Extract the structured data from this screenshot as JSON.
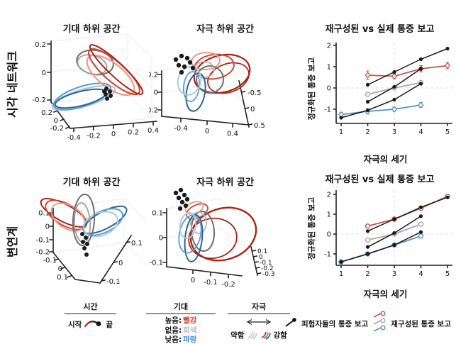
{
  "rows": [
    {
      "label": "시각 네트워크"
    },
    {
      "label": "변연계"
    }
  ],
  "chart_data": [
    {
      "id": "visual-expectation-subspace",
      "type": "trajectory3d",
      "title": "기대 하위 공간",
      "axes": {
        "z_ticks": [
          "0.2",
          "0",
          "-0.2"
        ],
        "left_ticks": [
          "0.2",
          "0",
          "-0.2"
        ],
        "bottom_ticks": [
          "-0.4",
          "-0.2",
          "0",
          "0.2",
          "0.4"
        ]
      }
    },
    {
      "id": "visual-stimulus-subspace",
      "type": "trajectory3d",
      "title": "자극 하위 공간",
      "axes": {
        "z_ticks": [
          "0.2",
          "0",
          "-0.2"
        ],
        "bottom_ticks": [
          "-0.4",
          "0",
          "0.4"
        ],
        "right_ticks": [
          "-0.5",
          "0",
          "0.5"
        ]
      }
    },
    {
      "id": "visual-reconstructed-vs-actual",
      "type": "line",
      "title": "재구성된 vs 실제 통증 보고",
      "xlabel": "자극의 세기",
      "ylabel": "정규화된 통증 보고",
      "xticks": [
        1,
        2,
        3,
        4,
        5
      ],
      "yticks": [
        2,
        1,
        0,
        -1
      ],
      "xlim": [
        0.8,
        5.4
      ],
      "ylim": [
        -1.75,
        2.3
      ],
      "reference_lines": {
        "x": 3,
        "y": 0
      },
      "series": [
        {
          "key": "recon-none",
          "label": "재구성된 통증 보고 (회색)",
          "color": "#a9a9a9",
          "marker": "open-circle",
          "x": [
            2,
            3,
            4
          ],
          "y": [
            -0.3,
            0.0,
            0.25
          ]
        },
        {
          "key": "recon-low",
          "label": "재구성된 통증 보고 (파랑)",
          "color": "#4f93c8",
          "marker": "open-diamond",
          "x": [
            1,
            2,
            3,
            4
          ],
          "y": [
            -1.25,
            -1.1,
            -1.0,
            -0.8
          ],
          "err": [
            0.1,
            0.12,
            0.1,
            0.12
          ]
        },
        {
          "key": "recon-high",
          "label": "재구성된 통증 보고 (빨강)",
          "color": "#c4554a",
          "marker": "open-diamond",
          "x": [
            2,
            3,
            4,
            5
          ],
          "y": [
            0.6,
            0.55,
            0.9,
            1.05
          ],
          "err": [
            0.2,
            0.12,
            0.15,
            0.15
          ]
        },
        {
          "key": "actual-a",
          "label": "피험자들의 통증 보고",
          "color": "#1a1a1a",
          "marker": "dot",
          "x": [
            2,
            3,
            4,
            5
          ],
          "y": [
            0.15,
            0.75,
            1.35,
            1.85
          ]
        },
        {
          "key": "actual-b",
          "label": "피험자들의 통증 보고",
          "color": "#1a1a1a",
          "marker": "dot",
          "x": [
            2,
            3,
            4
          ],
          "y": [
            -0.65,
            0.05,
            0.9
          ]
        },
        {
          "key": "actual-c",
          "label": "피험자들의 통증 보고",
          "color": "#1a1a1a",
          "marker": "dot",
          "x": [
            1,
            2,
            3,
            4
          ],
          "y": [
            -1.4,
            -1.05,
            -0.55,
            0.2
          ]
        }
      ]
    },
    {
      "id": "limbic-expectation-subspace",
      "type": "trajectory3d",
      "title": "기대 하위 공간",
      "axes": {
        "z_ticks": [
          "0.1",
          "0",
          "-0.1",
          "-0.2"
        ],
        "left_ticks": [
          "-0.1",
          "0",
          "0.1"
        ],
        "right_ticks": [
          "0.1",
          "0",
          "-0.1"
        ]
      }
    },
    {
      "id": "limbic-stimulus-subspace",
      "type": "trajectory3d",
      "title": "자극 하위 공간",
      "axes": {
        "z_ticks": [
          "0.1",
          "0",
          "-0.1"
        ],
        "bottom_ticks": [
          "0",
          "-0.1",
          "-0.2"
        ],
        "right_ticks": [
          "0.1",
          "0",
          "-0.1",
          "-0.2",
          "-0.3"
        ]
      }
    },
    {
      "id": "limbic-reconstructed-vs-actual",
      "type": "line",
      "title": "재구성된 vs 실제 통증 보고",
      "xlabel": "자극의 세기",
      "ylabel": "정규화된 통증 보고",
      "xticks": [
        1,
        2,
        3,
        4,
        5
      ],
      "yticks": [
        2,
        1,
        0,
        -1
      ],
      "xlim": [
        0.8,
        5.4
      ],
      "ylim": [
        -1.75,
        2.3
      ],
      "reference_lines": {
        "x": 3,
        "y": 0
      },
      "series": [
        {
          "key": "recon-none",
          "label": "재구성된 통증 보고 (회색)",
          "color": "#a9a9a9",
          "marker": "open-circle",
          "x": [
            2,
            3,
            4
          ],
          "y": [
            -0.3,
            0.0,
            0.5
          ]
        },
        {
          "key": "recon-low",
          "label": "재구성된 통증 보고 (파랑)",
          "color": "#4f93c8",
          "marker": "open-circle",
          "x": [
            1,
            2,
            3,
            4
          ],
          "y": [
            -1.4,
            -1.0,
            -0.55,
            -0.1
          ]
        },
        {
          "key": "recon-high",
          "label": "재구성된 통증 보고 (빨강)",
          "color": "#c4554a",
          "marker": "open-circle",
          "x": [
            2,
            3,
            4,
            5
          ],
          "y": [
            0.4,
            0.75,
            1.3,
            1.9
          ]
        },
        {
          "key": "actual-a",
          "label": "피험자들의 통증 보고",
          "color": "#1a1a1a",
          "marker": "dot",
          "x": [
            2,
            3,
            4,
            5
          ],
          "y": [
            0.15,
            0.75,
            1.35,
            1.85
          ]
        },
        {
          "key": "actual-b",
          "label": "피험자들의 통증 보고",
          "color": "#1a1a1a",
          "marker": "dot",
          "x": [
            2,
            3,
            4
          ],
          "y": [
            -0.65,
            0.05,
            0.9
          ]
        },
        {
          "key": "actual-c",
          "label": "피험자들의 통증 보고",
          "color": "#1a1a1a",
          "marker": "dot",
          "x": [
            1,
            2,
            3,
            4
          ],
          "y": [
            -1.4,
            -1.0,
            -0.55,
            0.1
          ]
        }
      ]
    }
  ],
  "legend": {
    "time": {
      "title": "시간",
      "start_label": "시작",
      "end_label": "끝"
    },
    "expectation": {
      "title": "기대",
      "items": [
        {
          "label": "높음:",
          "value": "빨강",
          "color": "#d63a26"
        },
        {
          "label": "없음:",
          "value": "회색",
          "color": "#b9b9b9"
        },
        {
          "label": "낮음:",
          "value": "파랑",
          "color": "#3d8bd4"
        }
      ]
    },
    "stimulus": {
      "title": "자극",
      "weak_label": "약함",
      "strong_label": "강함"
    },
    "report_markers": {
      "actual_label": "피험자들의 통증 보고",
      "reconstructed_label": "재구성된 통증 보고"
    }
  },
  "colors": {
    "red_dark": "#a82315",
    "red": "#c84b3b",
    "red_light": "#e89c86",
    "gray_dark": "#6e6e6e",
    "gray_light": "#b5b5b5",
    "blue_dark": "#2a6497",
    "blue": "#5b9bd0",
    "blue_light": "#a6cbe3",
    "black": "#1a1a1a"
  }
}
